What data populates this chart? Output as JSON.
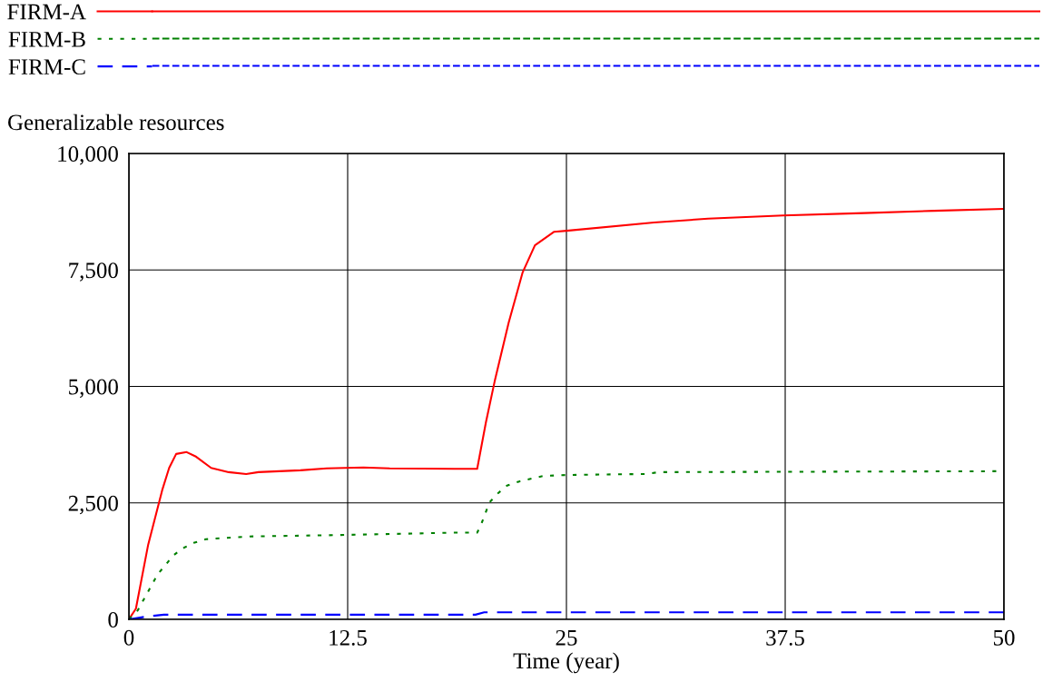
{
  "chart_data": {
    "type": "line",
    "title": "Generalizable resources",
    "xlabel": "Time (year)",
    "xlim": [
      0,
      50
    ],
    "xticks": [
      0,
      12.5,
      25,
      37.5,
      50
    ],
    "ylim": [
      0,
      10000
    ],
    "yticks": [
      0,
      {
        "value": 2500,
        "label": "2,500"
      },
      {
        "value": 5000,
        "label": "5,000"
      },
      {
        "value": 7500,
        "label": "7,500"
      },
      {
        "value": 10000,
        "label": "10,000"
      }
    ],
    "grid": true,
    "legend": "top",
    "series": [
      {
        "name": "FIRM-A",
        "color": "#ff0000",
        "line_style": "solid",
        "x": [
          0,
          0.4,
          1.1,
          1.9,
          2.3,
          2.7,
          3.3,
          3.8,
          4.7,
          5.7,
          6.7,
          7.4,
          9.8,
          11.3,
          13.4,
          14.9,
          18.6,
          19.9,
          20.4,
          20.9,
          21.7,
          22.5,
          23.2,
          24.3,
          25,
          30,
          33.1,
          37.4,
          42,
          46,
          50
        ],
        "values": [
          0,
          230,
          1600,
          2770,
          3250,
          3550,
          3590,
          3500,
          3250,
          3160,
          3120,
          3160,
          3200,
          3240,
          3260,
          3240,
          3230,
          3230,
          4230,
          5110,
          6370,
          7450,
          8030,
          8320,
          8340,
          8520,
          8600,
          8670,
          8720,
          8770,
          8810
        ]
      },
      {
        "name": "FIRM-B",
        "color": "#008000",
        "line_style": "dotted",
        "x": [
          0,
          0.5,
          1.0,
          1.65,
          2.1,
          2.5,
          3.05,
          3.7,
          4.4,
          6.9,
          12.1,
          18.5,
          19.9,
          20.1,
          20.6,
          21.1,
          21.6,
          22.3,
          23.7,
          25.2,
          29.5,
          30.3,
          40,
          50
        ],
        "values": [
          0,
          190,
          530,
          970,
          1170,
          1360,
          1520,
          1640,
          1720,
          1780,
          1810,
          1860,
          1860,
          2010,
          2510,
          2710,
          2870,
          2960,
          3080,
          3100,
          3120,
          3160,
          3170,
          3180
        ]
      },
      {
        "name": "FIRM-C",
        "color": "#0000ff",
        "line_style": "dashed",
        "x": [
          0,
          1.0,
          2.0,
          19.8,
          20.3,
          50
        ],
        "values": [
          0,
          60,
          100,
          100,
          150,
          150
        ]
      }
    ]
  }
}
